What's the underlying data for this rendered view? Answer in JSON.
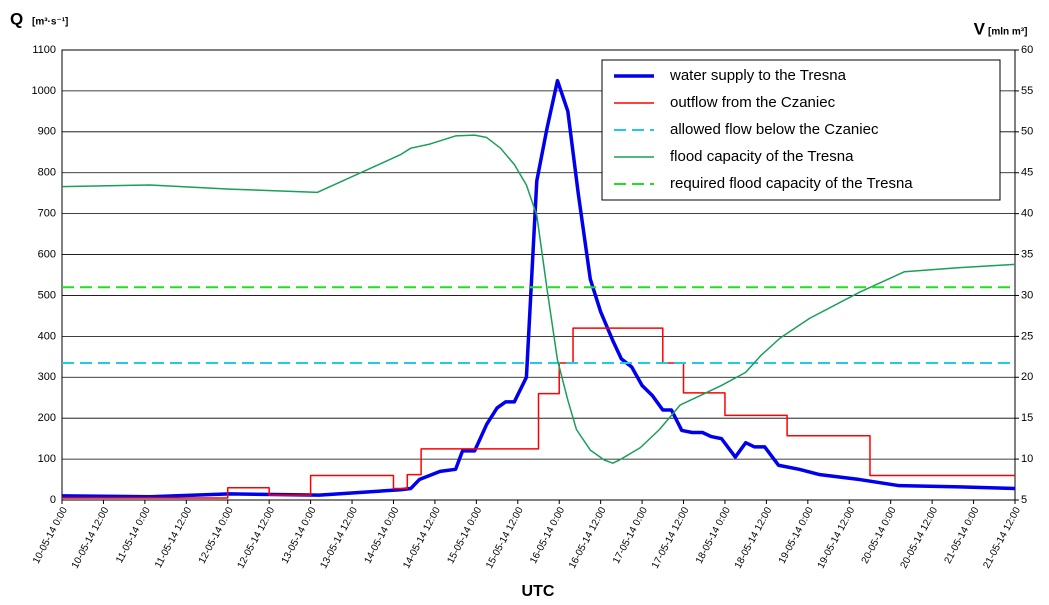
{
  "chart_data": {
    "type": "line",
    "y_label": "Q",
    "y_label_unit": "[m³·s⁻¹]",
    "y2_label": "V",
    "y2_label_unit": "[mln m³]",
    "x_label": "UTC",
    "xlim": [
      0,
      276
    ],
    "xticks": [
      {
        "value": 0,
        "label": "10-05-14 0:00"
      },
      {
        "value": 12,
        "label": "10-05-14 12:00"
      },
      {
        "value": 24,
        "label": "11-05-14 0:00"
      },
      {
        "value": 36,
        "label": "11-05-14 12:00"
      },
      {
        "value": 48,
        "label": "12-05-14 0:00"
      },
      {
        "value": 60,
        "label": "12-05-14 12:00"
      },
      {
        "value": 72,
        "label": "13-05-14 0:00"
      },
      {
        "value": 84,
        "label": "13-05-14 12:00"
      },
      {
        "value": 96,
        "label": "14-05-14 0:00"
      },
      {
        "value": 108,
        "label": "14-05-14 12:00"
      },
      {
        "value": 120,
        "label": "15-05-14 0:00"
      },
      {
        "value": 132,
        "label": "15-05-14 12:00"
      },
      {
        "value": 144,
        "label": "16-05-14 0:00"
      },
      {
        "value": 156,
        "label": "16-05-14 12:00"
      },
      {
        "value": 168,
        "label": "17-05-14 0:00"
      },
      {
        "value": 180,
        "label": "17-05-14 12:00"
      },
      {
        "value": 192,
        "label": "18-05-14 0:00"
      },
      {
        "value": 204,
        "label": "18-05-14 12:00"
      },
      {
        "value": 216,
        "label": "19-05-14 0:00"
      },
      {
        "value": 228,
        "label": "19-05-14 12:00"
      },
      {
        "value": 240,
        "label": "20-05-14 0:00"
      },
      {
        "value": 252,
        "label": "20-05-14 12:00"
      },
      {
        "value": 264,
        "label": "21-05-14 0:00"
      },
      {
        "value": 276,
        "label": "21-05-14 12:00"
      }
    ],
    "ylim": [
      0,
      1100
    ],
    "yticks": [
      0,
      100,
      200,
      300,
      400,
      500,
      600,
      700,
      800,
      900,
      1000,
      1100
    ],
    "y2lim": [
      5,
      60
    ],
    "y2ticks": [
      5,
      10,
      15,
      20,
      25,
      30,
      35,
      40,
      45,
      50,
      55,
      60
    ],
    "grid": true,
    "legend": "upper right",
    "series": [
      {
        "name": "water supply to the Tresna",
        "color": "#0000ee",
        "width": 3.5,
        "x": [
          0,
          25.5,
          48.5,
          74.5,
          98,
          101,
          103.5,
          109.5,
          114,
          116,
          119.5,
          123,
          126,
          128.5,
          131,
          134.5,
          137.5,
          140.5,
          143.5,
          146.5,
          149.5,
          153,
          156,
          159.5,
          162,
          165,
          168,
          171,
          174,
          176.5,
          179.5,
          182.5,
          185.5,
          188,
          191,
          195,
          198,
          200.5,
          203.5,
          207.5,
          213.5,
          219.5,
          231,
          242.5,
          260,
          276
        ],
        "values": [
          10,
          8,
          15,
          12,
          25,
          28,
          50,
          70,
          75,
          120,
          120,
          185,
          225,
          240,
          240,
          300,
          780,
          910,
          1025,
          950,
          750,
          540,
          460,
          390,
          345,
          325,
          280,
          255,
          220,
          220,
          170,
          165,
          165,
          155,
          150,
          105,
          140,
          130,
          130,
          85,
          75,
          62,
          50,
          35,
          32,
          28
        ]
      },
      {
        "name": "outflow from the Czaniec",
        "color": "#ff0000",
        "width": 1.5,
        "step": true,
        "x": [
          0,
          48,
          60,
          72,
          96,
          100,
          104,
          138,
          144,
          148,
          174,
          180,
          192,
          210,
          234,
          276
        ],
        "values": [
          5,
          30,
          12,
          60,
          28,
          62,
          125,
          260,
          335,
          420,
          335,
          262,
          207,
          157,
          60,
          60
        ]
      },
      {
        "name": "allowed flow below the Czaniec",
        "color": "#22c8e8",
        "width": 2,
        "dashed": true,
        "x": [
          0,
          276
        ],
        "values": [
          335,
          335
        ]
      },
      {
        "name": "flood capacity of the Tresna",
        "color": "#1a9e5a",
        "width": 1.5,
        "axis": "y2",
        "x": [
          0,
          25.5,
          48.5,
          74,
          98,
          101,
          106.5,
          114,
          119.5,
          123,
          127,
          131,
          134.5,
          137.5,
          140.5,
          143.5,
          146.5,
          149,
          153,
          157,
          159.5,
          161.5,
          167.5,
          173,
          179,
          185,
          191,
          198,
          202.5,
          208,
          216.5,
          231,
          244,
          260,
          276
        ],
        "values": [
          43.3,
          43.5,
          43,
          42.6,
          47.2,
          48,
          48.5,
          49.5,
          49.6,
          49.3,
          48,
          46,
          43.5,
          39.8,
          30.7,
          22.1,
          17.2,
          13.6,
          11.1,
          9.9,
          9.5,
          9.9,
          11.4,
          13.6,
          16.6,
          17.8,
          19,
          20.6,
          22.7,
          24.8,
          27.2,
          30.4,
          32.9,
          33.4,
          33.8
        ]
      },
      {
        "name": "required flood capacity of the Tresna",
        "color": "#22dd22",
        "width": 2,
        "dashed": true,
        "axis": "y2",
        "x": [
          0,
          276
        ],
        "values": [
          31,
          31
        ]
      }
    ]
  }
}
